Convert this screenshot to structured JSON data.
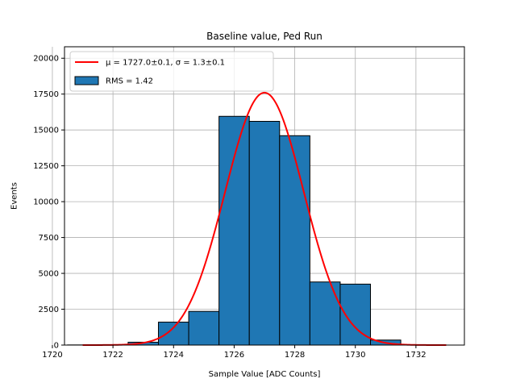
{
  "chart_data": {
    "type": "bar",
    "title": "Baseline value, Ped Run",
    "xlabel": "Sample Value [ADC Counts]",
    "ylabel": "Events",
    "xlim": [
      1720.4,
      1733.6
    ],
    "ylim": [
      0,
      20800
    ],
    "x_ticks": [
      1720,
      1722,
      1724,
      1726,
      1728,
      1730,
      1732
    ],
    "y_ticks": [
      0,
      2500,
      5000,
      7500,
      10000,
      12500,
      15000,
      17500,
      20000
    ],
    "grid": true,
    "legend_position": "top-left",
    "bin_width": 1,
    "histogram": {
      "name": "RMS = 1.42",
      "color": "#1f77b4",
      "bins": [
        {
          "x": 1721,
          "count": 10
        },
        {
          "x": 1722,
          "count": 30
        },
        {
          "x": 1723,
          "count": 200
        },
        {
          "x": 1724,
          "count": 1600
        },
        {
          "x": 1725,
          "count": 2350
        },
        {
          "x": 1726,
          "count": 15950
        },
        {
          "x": 1727,
          "count": 15600
        },
        {
          "x": 1728,
          "count": 14600
        },
        {
          "x": 1729,
          "count": 4400
        },
        {
          "x": 1730,
          "count": 4250
        },
        {
          "x": 1731,
          "count": 350
        },
        {
          "x": 1732,
          "count": 10
        }
      ]
    },
    "fit": {
      "name": "μ = 1727.0±0.1, σ = 1.3±0.1",
      "color": "#ff0000",
      "mu": 1727.0,
      "sigma": 1.3,
      "amplitude": 17600,
      "x_range": [
        1721,
        1733
      ]
    }
  }
}
